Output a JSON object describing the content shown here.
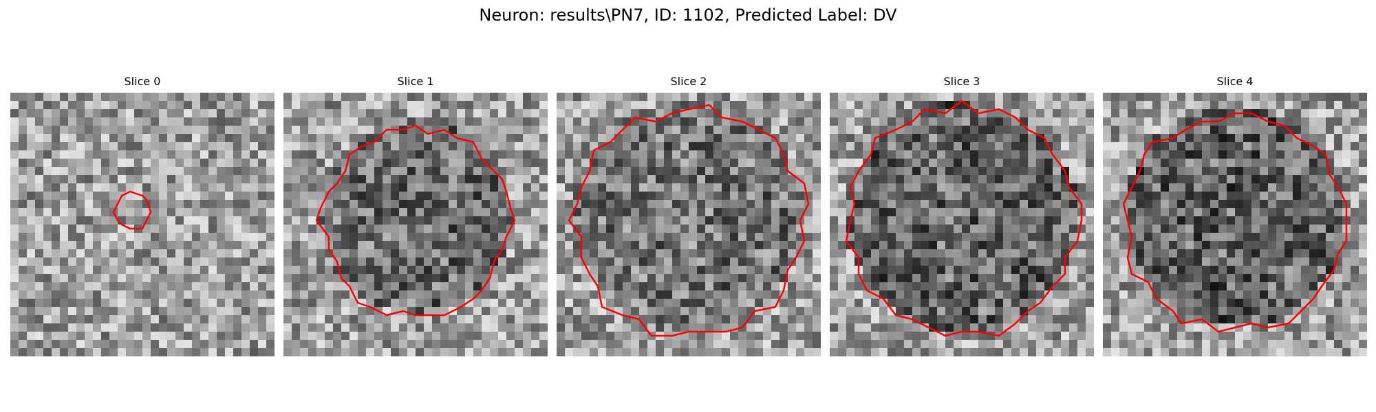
{
  "figure": {
    "suptitle": "Neuron: results\\PN7, ID: 1102, Predicted Label: DV"
  },
  "colors": {
    "contour": "#ff0000",
    "background": "#ffffff"
  },
  "panels": [
    {
      "title": "Slice 0",
      "seed": 11,
      "contour_scale": 0.07,
      "interior_dark": 0.0
    },
    {
      "title": "Slice 1",
      "seed": 29,
      "contour_scale": 0.36,
      "interior_dark": 0.25
    },
    {
      "title": "Slice 2",
      "seed": 47,
      "contour_scale": 0.44,
      "interior_dark": 0.2
    },
    {
      "title": "Slice 3",
      "seed": 83,
      "contour_scale": 0.44,
      "interior_dark": 0.28
    },
    {
      "title": "Slice 4",
      "seed": 97,
      "contour_scale": 0.42,
      "interior_dark": 0.3
    }
  ]
}
